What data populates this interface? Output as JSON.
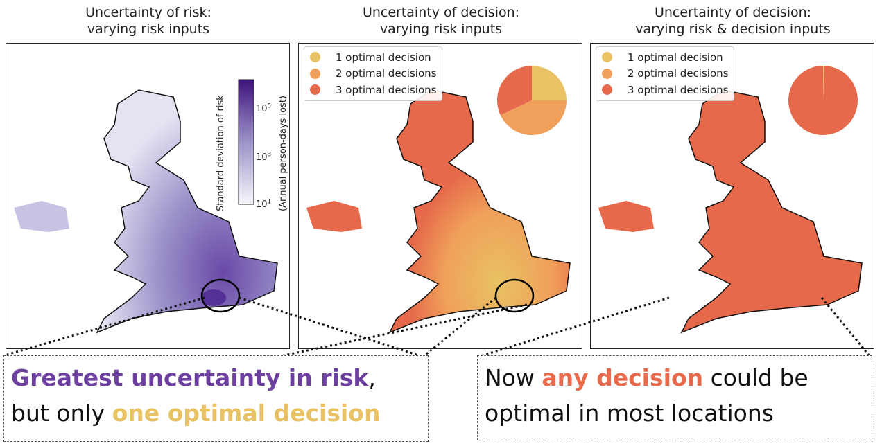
{
  "panels": [
    {
      "title_line1": "Uncertainty of risk:",
      "title_line2": "varying risk inputs"
    },
    {
      "title_line1": "Uncertainty of decision:",
      "title_line2": "varying risk inputs"
    },
    {
      "title_line1": "Uncertainty of decision:",
      "title_line2": "varying risk & decision inputs"
    }
  ],
  "colorbar": {
    "label": "Standard deviation of risk",
    "units": "(Annual person-days lost)",
    "ticks": [
      {
        "base": "10",
        "exp": "5"
      },
      {
        "base": "10",
        "exp": "3"
      },
      {
        "base": "10",
        "exp": "1"
      }
    ],
    "scale": "log",
    "color_low": "#f7f5fb",
    "color_high": "#3f137d"
  },
  "legend": {
    "items": [
      {
        "label": "1 optimal decision",
        "color": "#e8c264"
      },
      {
        "label": "2 optimal decisions",
        "color": "#f0a05a"
      },
      {
        "label": "3 optimal decisions",
        "color": "#e5694a"
      }
    ]
  },
  "pies": [
    {
      "panel": "varying risk inputs",
      "fractions": [
        0.25,
        0.43,
        0.32
      ]
    },
    {
      "panel": "varying risk & decision inputs",
      "fractions": [
        0.005,
        0.0,
        0.995
      ]
    }
  ],
  "callouts": {
    "left": {
      "highlight": "Greatest uncertainty in risk",
      "text1": ",",
      "text2": "but only ",
      "highlight2": "one optimal decision",
      "color1": "#6c3fa0",
      "color2": "#e8c264"
    },
    "right": {
      "text1": "Now ",
      "highlight": "any decision",
      "text2": " could be",
      "text3": "optimal in most locations",
      "color": "#e86a4a"
    }
  }
}
